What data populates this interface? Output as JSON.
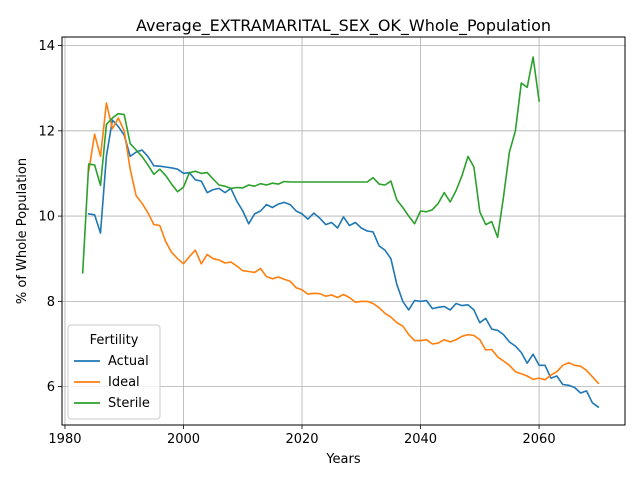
{
  "chart_data": {
    "type": "line",
    "title": "Average_EXTRAMARITAL_SEX_OK_Whole_Population",
    "xlabel": "Years",
    "ylabel": "% of Whole Population",
    "xlim": [
      1979.5,
      2074.5
    ],
    "ylim": [
      5.1,
      14.2
    ],
    "xticks": [
      1980,
      2000,
      2020,
      2040,
      2060
    ],
    "yticks": [
      6,
      8,
      10,
      12,
      14
    ],
    "grid": true,
    "legend": {
      "title": "Fertility",
      "placement": "lower-left"
    },
    "series": [
      {
        "name": "Actual",
        "color": "#1f77b4",
        "points": [
          [
            1984,
            10.05
          ],
          [
            1985,
            10.03
          ],
          [
            1986,
            9.6
          ],
          [
            1987,
            11.4
          ],
          [
            1988,
            12.25
          ],
          [
            1989,
            12.1
          ],
          [
            1990,
            11.9
          ],
          [
            1991,
            11.4
          ],
          [
            1992,
            11.5
          ],
          [
            1993,
            11.55
          ],
          [
            1994,
            11.4
          ],
          [
            1995,
            11.18
          ],
          [
            1996,
            11.17
          ],
          [
            1997,
            11.15
          ],
          [
            1998,
            11.13
          ],
          [
            1999,
            11.1
          ],
          [
            2000,
            11.0
          ],
          [
            2001,
            11.02
          ],
          [
            2002,
            10.85
          ],
          [
            2003,
            10.82
          ],
          [
            2004,
            10.55
          ],
          [
            2005,
            10.62
          ],
          [
            2006,
            10.65
          ],
          [
            2007,
            10.55
          ],
          [
            2008,
            10.65
          ],
          [
            2009,
            10.35
          ],
          [
            2010,
            10.12
          ],
          [
            2011,
            9.82
          ],
          [
            2012,
            10.05
          ],
          [
            2013,
            10.12
          ],
          [
            2014,
            10.27
          ],
          [
            2015,
            10.2
          ],
          [
            2016,
            10.28
          ],
          [
            2017,
            10.32
          ],
          [
            2018,
            10.27
          ],
          [
            2019,
            10.12
          ],
          [
            2020,
            10.05
          ],
          [
            2021,
            9.93
          ],
          [
            2022,
            10.07
          ],
          [
            2023,
            9.95
          ],
          [
            2024,
            9.8
          ],
          [
            2025,
            9.85
          ],
          [
            2026,
            9.72
          ],
          [
            2027,
            9.98
          ],
          [
            2028,
            9.78
          ],
          [
            2029,
            9.85
          ],
          [
            2030,
            9.72
          ],
          [
            2031,
            9.65
          ],
          [
            2032,
            9.63
          ],
          [
            2033,
            9.3
          ],
          [
            2034,
            9.2
          ],
          [
            2035,
            9.0
          ],
          [
            2036,
            8.4
          ],
          [
            2037,
            8.0
          ],
          [
            2038,
            7.8
          ],
          [
            2039,
            8.02
          ],
          [
            2040,
            8.0
          ],
          [
            2041,
            8.02
          ],
          [
            2042,
            7.83
          ],
          [
            2043,
            7.86
          ],
          [
            2044,
            7.88
          ],
          [
            2045,
            7.8
          ],
          [
            2046,
            7.95
          ],
          [
            2047,
            7.9
          ],
          [
            2048,
            7.92
          ],
          [
            2049,
            7.8
          ],
          [
            2050,
            7.5
          ],
          [
            2051,
            7.6
          ],
          [
            2052,
            7.35
          ],
          [
            2053,
            7.32
          ],
          [
            2054,
            7.22
          ],
          [
            2055,
            7.05
          ],
          [
            2056,
            6.95
          ],
          [
            2057,
            6.8
          ],
          [
            2058,
            6.55
          ],
          [
            2059,
            6.76
          ],
          [
            2060,
            6.5
          ],
          [
            2061,
            6.5
          ],
          [
            2062,
            6.2
          ],
          [
            2063,
            6.25
          ],
          [
            2064,
            6.05
          ],
          [
            2065,
            6.03
          ],
          [
            2066,
            5.98
          ],
          [
            2067,
            5.85
          ],
          [
            2068,
            5.9
          ],
          [
            2069,
            5.62
          ],
          [
            2070,
            5.52
          ]
        ]
      },
      {
        "name": "Ideal",
        "color": "#ff7f0e",
        "points": [
          [
            1984,
            11.05
          ],
          [
            1985,
            11.92
          ],
          [
            1986,
            11.4
          ],
          [
            1987,
            12.65
          ],
          [
            1988,
            12.05
          ],
          [
            1989,
            12.3
          ],
          [
            1990,
            12.0
          ],
          [
            1991,
            11.1
          ],
          [
            1992,
            10.48
          ],
          [
            1993,
            10.3
          ],
          [
            1994,
            10.08
          ],
          [
            1995,
            9.8
          ],
          [
            1996,
            9.78
          ],
          [
            1997,
            9.4
          ],
          [
            1998,
            9.15
          ],
          [
            1999,
            9.0
          ],
          [
            2000,
            8.88
          ],
          [
            2001,
            9.05
          ],
          [
            2002,
            9.2
          ],
          [
            2003,
            8.88
          ],
          [
            2004,
            9.1
          ],
          [
            2005,
            9.0
          ],
          [
            2006,
            8.97
          ],
          [
            2007,
            8.9
          ],
          [
            2008,
            8.92
          ],
          [
            2009,
            8.83
          ],
          [
            2010,
            8.72
          ],
          [
            2011,
            8.7
          ],
          [
            2012,
            8.68
          ],
          [
            2013,
            8.77
          ],
          [
            2014,
            8.58
          ],
          [
            2015,
            8.53
          ],
          [
            2016,
            8.57
          ],
          [
            2017,
            8.52
          ],
          [
            2018,
            8.47
          ],
          [
            2019,
            8.32
          ],
          [
            2020,
            8.27
          ],
          [
            2021,
            8.17
          ],
          [
            2022,
            8.19
          ],
          [
            2023,
            8.18
          ],
          [
            2024,
            8.12
          ],
          [
            2025,
            8.15
          ],
          [
            2026,
            8.09
          ],
          [
            2027,
            8.16
          ],
          [
            2028,
            8.09
          ],
          [
            2029,
            7.98
          ],
          [
            2030,
            8.0
          ],
          [
            2031,
            8.0
          ],
          [
            2032,
            7.95
          ],
          [
            2033,
            7.85
          ],
          [
            2034,
            7.72
          ],
          [
            2035,
            7.63
          ],
          [
            2036,
            7.5
          ],
          [
            2037,
            7.42
          ],
          [
            2038,
            7.22
          ],
          [
            2039,
            7.08
          ],
          [
            2040,
            7.08
          ],
          [
            2041,
            7.1
          ],
          [
            2042,
            7.0
          ],
          [
            2043,
            7.02
          ],
          [
            2044,
            7.1
          ],
          [
            2045,
            7.05
          ],
          [
            2046,
            7.1
          ],
          [
            2047,
            7.18
          ],
          [
            2048,
            7.22
          ],
          [
            2049,
            7.2
          ],
          [
            2050,
            7.1
          ],
          [
            2051,
            6.86
          ],
          [
            2052,
            6.87
          ],
          [
            2053,
            6.7
          ],
          [
            2054,
            6.6
          ],
          [
            2055,
            6.5
          ],
          [
            2056,
            6.35
          ],
          [
            2057,
            6.3
          ],
          [
            2058,
            6.25
          ],
          [
            2059,
            6.17
          ],
          [
            2060,
            6.2
          ],
          [
            2061,
            6.16
          ],
          [
            2062,
            6.27
          ],
          [
            2063,
            6.35
          ],
          [
            2064,
            6.5
          ],
          [
            2065,
            6.56
          ],
          [
            2066,
            6.5
          ],
          [
            2067,
            6.48
          ],
          [
            2068,
            6.38
          ],
          [
            2069,
            6.23
          ],
          [
            2070,
            6.08
          ]
        ]
      },
      {
        "name": "Sterile",
        "color": "#2ca02c",
        "points": [
          [
            1983,
            8.67
          ],
          [
            1984,
            11.22
          ],
          [
            1985,
            11.2
          ],
          [
            1986,
            10.72
          ],
          [
            1987,
            12.15
          ],
          [
            1988,
            12.3
          ],
          [
            1989,
            12.4
          ],
          [
            1990,
            12.38
          ],
          [
            1991,
            11.7
          ],
          [
            1992,
            11.55
          ],
          [
            1993,
            11.4
          ],
          [
            1994,
            11.2
          ],
          [
            1995,
            10.98
          ],
          [
            1996,
            11.1
          ],
          [
            1997,
            10.95
          ],
          [
            1998,
            10.75
          ],
          [
            1999,
            10.57
          ],
          [
            2000,
            10.68
          ],
          [
            2001,
            11.02
          ],
          [
            2002,
            11.05
          ],
          [
            2003,
            11.0
          ],
          [
            2004,
            11.02
          ],
          [
            2005,
            10.87
          ],
          [
            2006,
            10.73
          ],
          [
            2007,
            10.7
          ],
          [
            2008,
            10.65
          ],
          [
            2009,
            10.67
          ],
          [
            2010,
            10.66
          ],
          [
            2011,
            10.73
          ],
          [
            2012,
            10.7
          ],
          [
            2013,
            10.76
          ],
          [
            2014,
            10.73
          ],
          [
            2015,
            10.77
          ],
          [
            2016,
            10.75
          ],
          [
            2017,
            10.81
          ],
          [
            2018,
            10.8
          ],
          [
            2020,
            10.8
          ],
          [
            2025,
            10.8
          ],
          [
            2030,
            10.8
          ],
          [
            2031,
            10.8
          ],
          [
            2032,
            10.9
          ],
          [
            2033,
            10.75
          ],
          [
            2034,
            10.73
          ],
          [
            2035,
            10.82
          ],
          [
            2036,
            10.38
          ],
          [
            2037,
            10.2
          ],
          [
            2038,
            10.0
          ],
          [
            2039,
            9.82
          ],
          [
            2040,
            10.12
          ],
          [
            2041,
            10.1
          ],
          [
            2042,
            10.15
          ],
          [
            2043,
            10.3
          ],
          [
            2044,
            10.55
          ],
          [
            2045,
            10.33
          ],
          [
            2046,
            10.6
          ],
          [
            2047,
            10.95
          ],
          [
            2048,
            11.4
          ],
          [
            2049,
            11.15
          ],
          [
            2050,
            10.1
          ],
          [
            2051,
            9.8
          ],
          [
            2052,
            9.87
          ],
          [
            2053,
            9.5
          ],
          [
            2054,
            10.45
          ],
          [
            2055,
            11.5
          ],
          [
            2056,
            12.0
          ],
          [
            2057,
            13.12
          ],
          [
            2058,
            13.02
          ],
          [
            2059,
            13.73
          ],
          [
            2060,
            12.7
          ]
        ]
      }
    ]
  }
}
